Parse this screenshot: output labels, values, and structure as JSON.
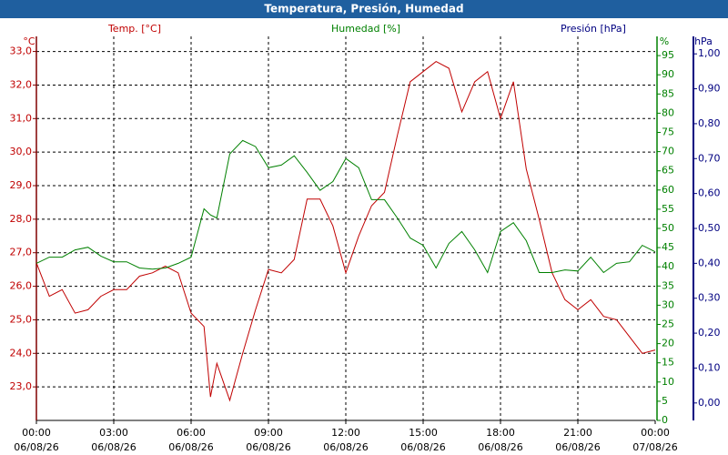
{
  "chart_data": {
    "type": "line",
    "title": "Temperatura, Presión, Humedad",
    "ylabel": "°C",
    "y2label": "%",
    "y3label": "hPa",
    "y3title": "Presión [hPa]",
    "grid": true,
    "x": [
      0,
      0.5,
      1,
      1.5,
      2,
      2.5,
      3,
      3.5,
      4,
      4.5,
      5,
      5.5,
      6,
      6.5,
      6.75,
      7,
      7.5,
      8,
      8.5,
      9,
      9.5,
      10,
      10.5,
      11,
      11.5,
      12,
      12.5,
      13,
      13.5,
      14,
      14.5,
      15,
      15.5,
      16,
      16.5,
      17,
      17.5,
      18,
      18.5,
      19,
      19.5,
      20,
      20.5,
      21,
      21.5,
      22,
      22.5,
      23,
      23.5,
      24
    ],
    "xlim": [
      0,
      24
    ],
    "xticks": [
      {
        "value": 0,
        "label": "00:00"
      },
      {
        "value": 3,
        "label": "03:00"
      },
      {
        "value": 6,
        "label": "06:00"
      },
      {
        "value": 9,
        "label": "09:00"
      },
      {
        "value": 12,
        "label": "12:00"
      },
      {
        "value": 15,
        "label": "15:00"
      },
      {
        "value": 18,
        "label": "18:00"
      },
      {
        "value": 21,
        "label": "21:00"
      },
      {
        "value": 24,
        "label": "00:00"
      }
    ],
    "xtick_dates": [
      "06/08/26",
      "06/08/26",
      "06/08/26",
      "06/08/26",
      "06/08/26",
      "06/08/26",
      "06/08/26",
      "06/08/26",
      "07/08/26"
    ],
    "ylim": [
      22,
      33.45
    ],
    "yticks": [
      {
        "value": 23,
        "label": "23,0"
      },
      {
        "value": 24,
        "label": "24,0"
      },
      {
        "value": 25,
        "label": "25,0"
      },
      {
        "value": 26,
        "label": "26,0"
      },
      {
        "value": 27,
        "label": "27,0"
      },
      {
        "value": 28,
        "label": "28,0"
      },
      {
        "value": 29,
        "label": "29,0"
      },
      {
        "value": 30,
        "label": "30,0"
      },
      {
        "value": 31,
        "label": "31,0"
      },
      {
        "value": 32,
        "label": "32,0"
      },
      {
        "value": 33,
        "label": "33,0"
      }
    ],
    "y2lim": [
      0,
      100
    ],
    "y2ticks": [
      0,
      5,
      10,
      15,
      20,
      25,
      30,
      35,
      40,
      45,
      50,
      55,
      60,
      65,
      70,
      75,
      80,
      85,
      90,
      95
    ],
    "y3lim": [
      -0.05,
      1.05
    ],
    "y3ticks": [
      {
        "value": 0,
        "label": "0,00"
      },
      {
        "value": 0.1,
        "label": "0,10"
      },
      {
        "value": 0.2,
        "label": "0,20"
      },
      {
        "value": 0.3,
        "label": "0,30"
      },
      {
        "value": 0.4,
        "label": "0,40"
      },
      {
        "value": 0.5,
        "label": "0,50"
      },
      {
        "value": 0.6,
        "label": "0,60"
      },
      {
        "value": 0.7,
        "label": "0,70"
      },
      {
        "value": 0.8,
        "label": "0,80"
      },
      {
        "value": 0.9,
        "label": "0,90"
      },
      {
        "value": 1,
        "label": "1,00"
      }
    ],
    "series": [
      {
        "name": "Temp. [°C]",
        "color": "#c00000",
        "axis": "y",
        "values": [
          26.7,
          25.7,
          25.9,
          25.2,
          25.3,
          25.7,
          25.9,
          25.9,
          26.3,
          26.4,
          26.6,
          26.4,
          25.2,
          24.8,
          22.7,
          23.7,
          22.6,
          24.0,
          25.3,
          26.5,
          26.4,
          26.8,
          28.6,
          28.6,
          27.8,
          26.4,
          27.5,
          28.4,
          28.8,
          30.5,
          32.1,
          32.4,
          32.7,
          32.5,
          31.2,
          32.1,
          32.4,
          31.0,
          32.1,
          29.5,
          28.0,
          26.4,
          25.6,
          25.3,
          25.6,
          25.1,
          25.0,
          24.5,
          24.0,
          24.1
        ]
      },
      {
        "name": "Humedad [%]",
        "color": "#008000",
        "axis": "y2",
        "values": [
          40.9,
          42.5,
          42.5,
          44.4,
          45.1,
          42.8,
          41.3,
          41.3,
          39.7,
          39.4,
          39.7,
          40.9,
          42.5,
          55.1,
          53.5,
          52.7,
          69.4,
          72.9,
          71.3,
          65.8,
          66.5,
          68.9,
          64.6,
          59.9,
          62.2,
          68.2,
          65.8,
          57.5,
          57.5,
          52.7,
          47.5,
          45.6,
          39.7,
          46.1,
          49.2,
          44.4,
          38.5,
          49.2,
          51.5,
          46.8,
          38.5,
          38.5,
          39.2,
          38.9,
          42.5,
          38.5,
          40.9,
          41.3,
          45.6,
          43.9
        ]
      }
    ]
  }
}
